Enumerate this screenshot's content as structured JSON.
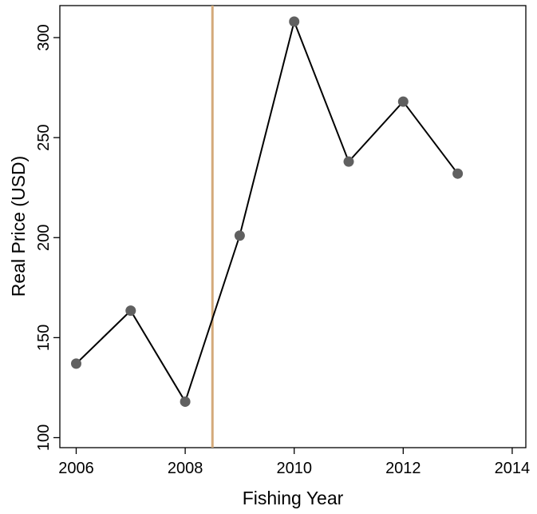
{
  "chart_data": {
    "type": "line",
    "title": "",
    "xlabel": "Fishing Year",
    "ylabel": "Real Price (USD)",
    "xlim": [
      2005.7,
      2014.25
    ],
    "ylim": [
      95,
      316
    ],
    "x_ticks": [
      2006,
      2008,
      2010,
      2012,
      2014
    ],
    "y_ticks": [
      100,
      150,
      200,
      250,
      300
    ],
    "grid": false,
    "legend": "none",
    "series": [
      {
        "x": [
          2006,
          2007,
          2008,
          2009,
          2010,
          2011,
          2012,
          2013
        ],
        "values": [
          137,
          163.5,
          118,
          201,
          308,
          238,
          268,
          232
        ]
      }
    ],
    "reference_lines": [
      {
        "orientation": "vertical",
        "x": 2008.5
      }
    ],
    "colors": {
      "line": "#000000",
      "marker": "#606060",
      "reference_line": "#d4aa7a",
      "axis": "#000000"
    }
  }
}
